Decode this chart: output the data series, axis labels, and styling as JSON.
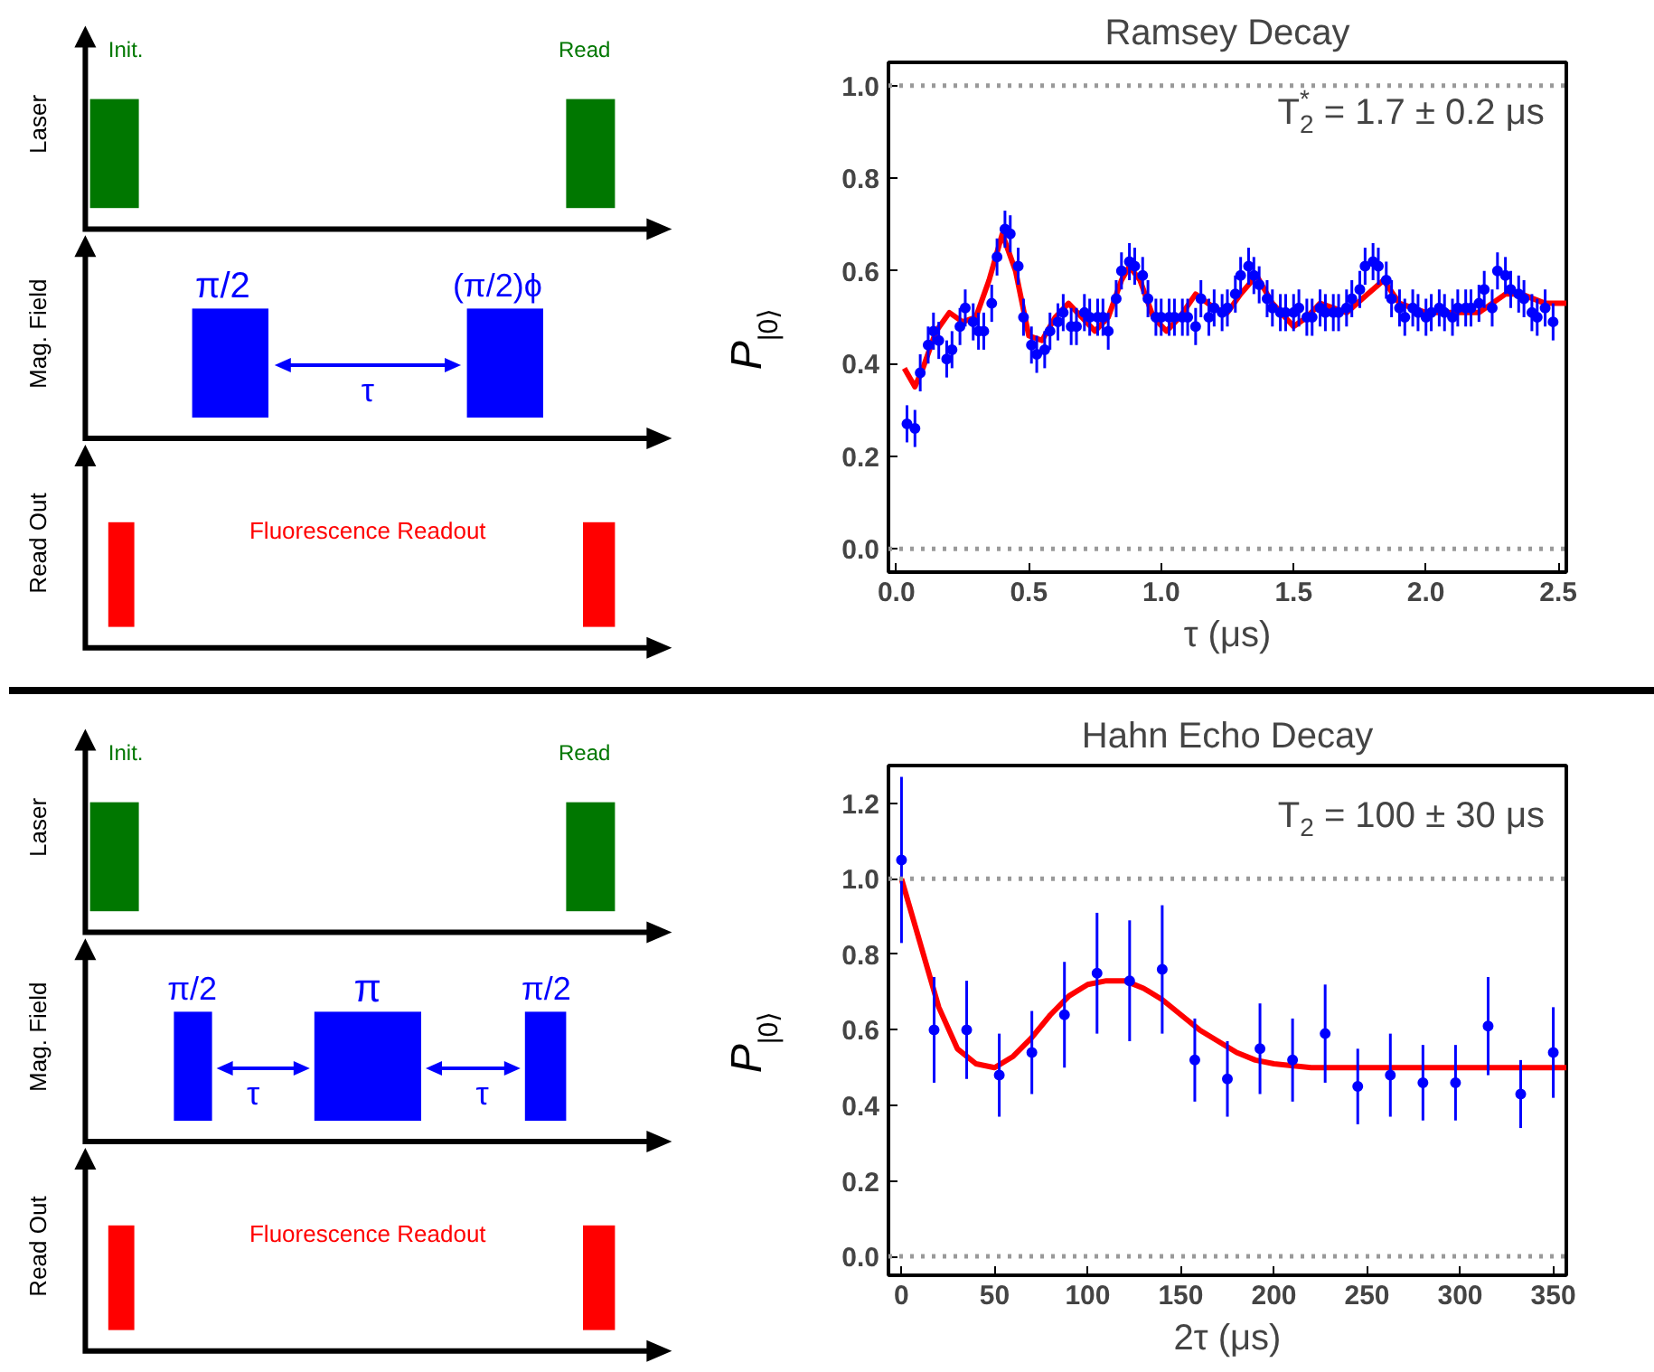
{
  "chart_data": [
    {
      "type": "other",
      "annotations": [
        "Laser",
        "Init.",
        "Read",
        "Mag. Field",
        "π/2",
        "(π/2)ϕ",
        "τ",
        "Read Out",
        "Fluorescence Readout"
      ]
    },
    {
      "type": "scatter",
      "title": "Ramsey Decay",
      "xlabel": "τ (μs)",
      "ylabel": "P$_{|0⟩}$",
      "annotations": [
        "T$_{2}$$^{*}$ = 1.7 ± 0.2 μs"
      ],
      "xlim": [
        -0.03,
        2.53
      ],
      "ylim": [
        -0.05,
        1.05
      ],
      "xticks": [
        {
          "value": 0,
          "label": "0.0"
        },
        {
          "value": 0.5,
          "label": "0.5"
        },
        {
          "value": 1,
          "label": "1.0"
        },
        {
          "value": 1.5,
          "label": "1.5"
        },
        {
          "value": 2,
          "label": "2.0"
        },
        {
          "value": 2.5,
          "label": "2.5"
        }
      ],
      "yticks": [
        {
          "value": 0,
          "label": "0.0"
        },
        {
          "value": 0.2,
          "label": "0.2"
        },
        {
          "value": 0.4,
          "label": "0.4"
        },
        {
          "value": 0.6,
          "label": "0.6"
        },
        {
          "value": 0.8,
          "label": "0.8"
        },
        {
          "value": 1,
          "label": "1.0"
        }
      ],
      "ref_lines": [
        {
          "axis": "y",
          "value": 0,
          "color": "#999999",
          "line_style": "dotted"
        },
        {
          "axis": "y",
          "value": 1,
          "color": "#999999",
          "line_style": "dotted"
        }
      ],
      "series": [
        {
          "type": "scatter",
          "marker": "circle",
          "color": "#0000ff",
          "x": [
            0.04,
            0.07,
            0.09,
            0.12,
            0.14,
            0.16,
            0.19,
            0.21,
            0.24,
            0.26,
            0.29,
            0.31,
            0.33,
            0.36,
            0.38,
            0.41,
            0.43,
            0.46,
            0.48,
            0.51,
            0.53,
            0.56,
            0.58,
            0.61,
            0.63,
            0.66,
            0.68,
            0.71,
            0.73,
            0.76,
            0.78,
            0.8,
            0.83,
            0.85,
            0.88,
            0.9,
            0.93,
            0.95,
            0.98,
            1.0,
            1.03,
            1.05,
            1.08,
            1.1,
            1.13,
            1.15,
            1.18,
            1.2,
            1.23,
            1.25,
            1.28,
            1.3,
            1.33,
            1.35,
            1.37,
            1.4,
            1.42,
            1.45,
            1.47,
            1.5,
            1.52,
            1.55,
            1.57,
            1.6,
            1.62,
            1.65,
            1.67,
            1.7,
            1.72,
            1.75,
            1.77,
            1.8,
            1.82,
            1.85,
            1.87,
            1.9,
            1.92,
            1.95,
            1.97,
            2.0,
            2.02,
            2.05,
            2.07,
            2.1,
            2.12,
            2.15,
            2.17,
            2.2,
            2.22,
            2.25,
            2.27,
            2.3,
            2.32,
            2.35,
            2.37,
            2.4,
            2.42,
            2.45,
            2.48
          ],
          "values": [
            0.27,
            0.26,
            0.38,
            0.44,
            0.47,
            0.45,
            0.41,
            0.43,
            0.48,
            0.52,
            0.49,
            0.47,
            0.47,
            0.53,
            0.63,
            0.69,
            0.68,
            0.61,
            0.5,
            0.44,
            0.42,
            0.43,
            0.47,
            0.49,
            0.51,
            0.48,
            0.48,
            0.51,
            0.5,
            0.5,
            0.5,
            0.47,
            0.54,
            0.6,
            0.62,
            0.61,
            0.59,
            0.54,
            0.5,
            0.5,
            0.5,
            0.5,
            0.5,
            0.5,
            0.48,
            0.54,
            0.5,
            0.52,
            0.51,
            0.52,
            0.55,
            0.59,
            0.61,
            0.59,
            0.57,
            0.54,
            0.52,
            0.51,
            0.51,
            0.51,
            0.52,
            0.5,
            0.5,
            0.52,
            0.51,
            0.51,
            0.51,
            0.52,
            0.54,
            0.56,
            0.61,
            0.62,
            0.61,
            0.58,
            0.54,
            0.52,
            0.5,
            0.52,
            0.51,
            0.5,
            0.51,
            0.52,
            0.51,
            0.5,
            0.52,
            0.52,
            0.52,
            0.53,
            0.56,
            0.52,
            0.6,
            0.59,
            0.56,
            0.55,
            0.54,
            0.51,
            0.5,
            0.52,
            0.49
          ],
          "errors": [
            0.04,
            0.04,
            0.04,
            0.04,
            0.04,
            0.04,
            0.04,
            0.04,
            0.04,
            0.04,
            0.04,
            0.04,
            0.04,
            0.04,
            0.04,
            0.04,
            0.04,
            0.04,
            0.04,
            0.04,
            0.04,
            0.04,
            0.04,
            0.04,
            0.04,
            0.04,
            0.04,
            0.04,
            0.04,
            0.04,
            0.04,
            0.04,
            0.04,
            0.04,
            0.04,
            0.04,
            0.04,
            0.04,
            0.04,
            0.04,
            0.04,
            0.04,
            0.04,
            0.04,
            0.04,
            0.04,
            0.04,
            0.04,
            0.04,
            0.04,
            0.04,
            0.04,
            0.04,
            0.04,
            0.04,
            0.04,
            0.04,
            0.04,
            0.04,
            0.04,
            0.04,
            0.04,
            0.04,
            0.04,
            0.04,
            0.04,
            0.04,
            0.04,
            0.04,
            0.04,
            0.04,
            0.04,
            0.04,
            0.04,
            0.04,
            0.04,
            0.04,
            0.04,
            0.04,
            0.04,
            0.04,
            0.04,
            0.04,
            0.04,
            0.04,
            0.04,
            0.04,
            0.04,
            0.04,
            0.04,
            0.04,
            0.04,
            0.04,
            0.04,
            0.04,
            0.04,
            0.04,
            0.04,
            0.04
          ]
        },
        {
          "type": "line",
          "color": "#ff0000",
          "x": [
            0.03,
            0.07,
            0.1,
            0.15,
            0.2,
            0.25,
            0.3,
            0.35,
            0.4,
            0.45,
            0.5,
            0.55,
            0.6,
            0.65,
            0.7,
            0.75,
            0.8,
            0.85,
            0.88,
            0.92,
            0.97,
            1.02,
            1.07,
            1.13,
            1.2,
            1.25,
            1.3,
            1.36,
            1.42,
            1.5,
            1.55,
            1.6,
            1.7,
            1.78,
            1.84,
            1.9,
            2.0,
            2.1,
            2.2,
            2.3,
            2.36,
            2.45,
            2.53
          ],
          "values": [
            0.39,
            0.35,
            0.39,
            0.47,
            0.51,
            0.49,
            0.5,
            0.58,
            0.68,
            0.6,
            0.46,
            0.45,
            0.5,
            0.53,
            0.5,
            0.47,
            0.5,
            0.58,
            0.61,
            0.58,
            0.5,
            0.47,
            0.5,
            0.55,
            0.52,
            0.51,
            0.55,
            0.59,
            0.53,
            0.48,
            0.5,
            0.53,
            0.51,
            0.55,
            0.58,
            0.53,
            0.51,
            0.51,
            0.51,
            0.55,
            0.55,
            0.53,
            0.53
          ]
        }
      ]
    },
    {
      "type": "other",
      "annotations": [
        "Laser",
        "Init.",
        "Read",
        "Mag. Field",
        "π/2",
        "π",
        "π/2",
        "τ",
        "τ",
        "Read Out",
        "Fluorescence Readout"
      ]
    },
    {
      "type": "scatter",
      "title": "Hahn Echo Decay",
      "xlabel": "2τ (μs)",
      "ylabel": "P$_{|0⟩}$",
      "annotations": [
        "T$_{2}$ = 100 ± 30 μs"
      ],
      "xlim": [
        -7,
        357
      ],
      "ylim": [
        -0.05,
        1.3
      ],
      "xticks": [
        0,
        50,
        100,
        150,
        200,
        250,
        300,
        350
      ],
      "yticks": [
        {
          "value": 0,
          "label": "0.0"
        },
        {
          "value": 0.2,
          "label": "0.2"
        },
        {
          "value": 0.4,
          "label": "0.4"
        },
        {
          "value": 0.6,
          "label": "0.6"
        },
        {
          "value": 0.8,
          "label": "0.8"
        },
        {
          "value": 1,
          "label": "1.0"
        },
        {
          "value": 1.2,
          "label": "1.2"
        }
      ],
      "ref_lines": [
        {
          "axis": "y",
          "value": 0,
          "color": "#999999",
          "line_style": "dotted"
        },
        {
          "axis": "y",
          "value": 1,
          "color": "#999999",
          "line_style": "dotted"
        }
      ],
      "series": [
        {
          "type": "scatter",
          "marker": "circle",
          "color": "#0000ff",
          "x": [
            0,
            17.5,
            35,
            52.5,
            70,
            87.5,
            105,
            122.5,
            140,
            157.5,
            175,
            192.5,
            210,
            227.5,
            245,
            262.5,
            280,
            297.5,
            315,
            332.5,
            350
          ],
          "values": [
            1.05,
            0.6,
            0.6,
            0.48,
            0.54,
            0.64,
            0.75,
            0.73,
            0.76,
            0.52,
            0.47,
            0.55,
            0.52,
            0.59,
            0.45,
            0.48,
            0.46,
            0.46,
            0.61,
            0.43,
            0.54
          ],
          "errors": [
            0.22,
            0.14,
            0.13,
            0.11,
            0.11,
            0.14,
            0.16,
            0.16,
            0.17,
            0.11,
            0.1,
            0.12,
            0.11,
            0.13,
            0.1,
            0.11,
            0.1,
            0.1,
            0.13,
            0.09,
            0.12
          ]
        },
        {
          "type": "line",
          "color": "#ff0000",
          "x": [
            0,
            10,
            20,
            30,
            40,
            50,
            60,
            70,
            80,
            90,
            100,
            110,
            120,
            130,
            140,
            150,
            160,
            170,
            180,
            190,
            200,
            220,
            250,
            300,
            357
          ],
          "values": [
            1.0,
            0.83,
            0.66,
            0.55,
            0.51,
            0.5,
            0.53,
            0.58,
            0.64,
            0.69,
            0.72,
            0.73,
            0.73,
            0.71,
            0.68,
            0.64,
            0.6,
            0.57,
            0.54,
            0.52,
            0.51,
            0.5,
            0.5,
            0.5,
            0.5
          ]
        }
      ]
    }
  ]
}
